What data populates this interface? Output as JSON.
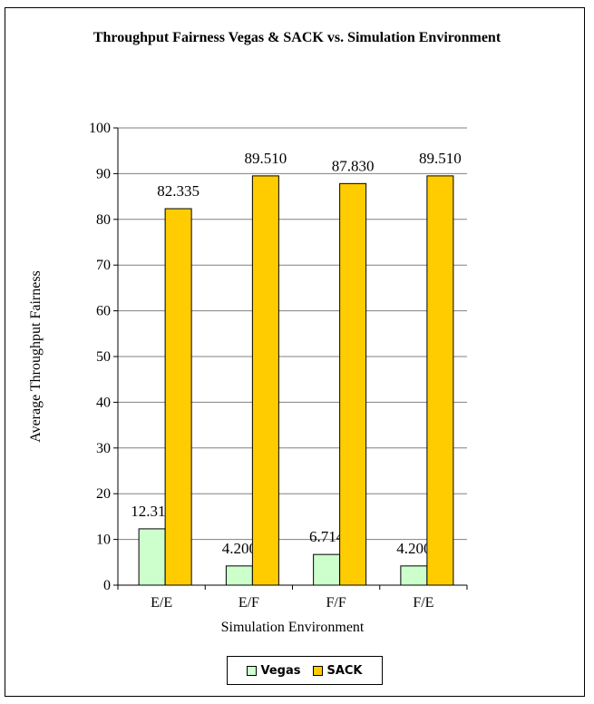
{
  "chart_data": {
    "type": "bar",
    "title": "Throughput Fairness Vegas & SACK vs. Simulation Environment",
    "xlabel": "Simulation Environment",
    "ylabel": "Average Throughput Fairness",
    "categories": [
      "E/E",
      "E/F",
      "F/F",
      "F/E"
    ],
    "ylim": [
      0,
      100
    ],
    "yticks": [
      0,
      10,
      20,
      30,
      40,
      50,
      60,
      70,
      80,
      90,
      100
    ],
    "grid": true,
    "legend_position": "bottom",
    "series": [
      {
        "name": "Vegas",
        "values": [
          12.318,
          4.2,
          6.714,
          4.2
        ],
        "labels": [
          "12.318",
          "4.200",
          "6.714",
          "4.200"
        ],
        "color": "#ccffcc"
      },
      {
        "name": "SACK",
        "values": [
          82.335,
          89.51,
          87.83,
          89.51
        ],
        "labels": [
          "82.335",
          "89.510",
          "87.830",
          "89.510"
        ],
        "color": "#ffcc00"
      }
    ]
  }
}
